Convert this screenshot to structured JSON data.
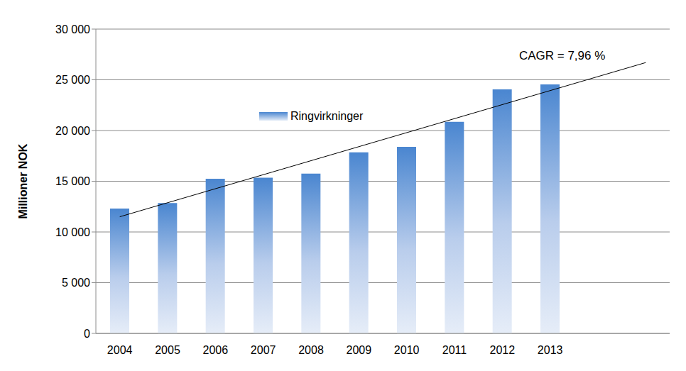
{
  "chart_data": {
    "type": "bar",
    "annotation": "CAGR = 7,96 %",
    "y_label": "Millioner NOK",
    "categories": [
      "2004",
      "2005",
      "2006",
      "2007",
      "2008",
      "2009",
      "2010",
      "2011",
      "2012",
      "2013",
      null,
      null
    ],
    "series": [
      {
        "name": "Ringvirkninger",
        "type": "bar",
        "color": "#4a86d0",
        "values": [
          12300,
          12850,
          15250,
          15350,
          15750,
          17850,
          18400,
          20850,
          24050,
          24550,
          null,
          null
        ]
      },
      {
        "type": "line",
        "color": "#000000",
        "values": [
          11500,
          null,
          null,
          null,
          null,
          null,
          null,
          null,
          null,
          null,
          null,
          26700
        ]
      }
    ],
    "ylim": [
      0,
      30000
    ],
    "yticks": [
      0,
      {
        "value": 5000,
        "label": "5 000"
      },
      {
        "value": 10000,
        "label": "10 000"
      },
      {
        "value": 15000,
        "label": "15 000"
      },
      {
        "value": 20000,
        "label": "20 000"
      },
      {
        "value": 25000,
        "label": "25 000"
      },
      {
        "value": 30000,
        "label": "30 000"
      }
    ],
    "grid": true,
    "legend": "top"
  }
}
